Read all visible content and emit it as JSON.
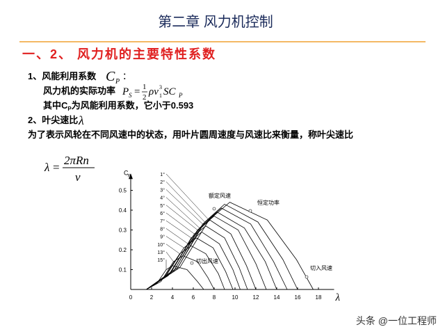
{
  "header": {
    "title": "第二章  风力机控制"
  },
  "heading": "一、2、 风力机的主要特性系数",
  "items": {
    "cp_label": "1、风能利用系数",
    "cp_symbol": "C",
    "cp_symbol_sub": "P",
    "cp_colon": "：",
    "power_label": "风力机的实际功率",
    "power_formula": {
      "lhs": "P",
      "lhs_sub": "S",
      "eq": "=",
      "num": "1",
      "den": "2",
      "rho_v": "ρv",
      "v_sub": "1",
      "v_sup": "3",
      "sc": "SC",
      "sc_sub": "P"
    },
    "cp_note_pre": "其中",
    "cp_note_sym": "C",
    "cp_note_sub": "P",
    "cp_note_post": "为风能利用系数，它小于0.593",
    "tsr_label": "2、叶尖速比",
    "tsr_symbol": "λ",
    "tsr_desc": "为了表示风轮在不同风速中的状态，用叶片圆周速度与风速比来衡量，称叶尖速比",
    "tsr_formula": {
      "lhs": "λ",
      "eq": "=",
      "num": "2πRn",
      "den": "v"
    }
  },
  "chart_data": {
    "type": "line",
    "y_label": "C",
    "y_label_sub": "P",
    "x_label": "λ",
    "xlim": [
      0,
      19.5
    ],
    "ylim": [
      0,
      0.55
    ],
    "xticks": [
      0,
      2,
      4,
      6,
      8,
      10,
      12,
      14,
      16,
      18
    ],
    "yticks": [
      0.1,
      0.2,
      0.3,
      0.4,
      0.5
    ],
    "annotations": [
      "额定风速",
      "恒定功率",
      "切出风速",
      "切入风速"
    ],
    "series": [
      {
        "name": "1°",
        "color": "#000000",
        "x": [
          1.5,
          4.7,
          7.5,
          9.5,
          13.1,
          15.9,
          17.5
        ],
        "values": [
          0,
          0.11,
          0.35,
          0.44,
          0.35,
          0.15,
          0
        ]
      },
      {
        "name": "2°",
        "color": "#000000",
        "x": [
          1.5,
          4.5,
          7.1,
          9,
          12.2,
          14.6,
          16
        ],
        "values": [
          0,
          0.11,
          0.34,
          0.43,
          0.34,
          0.15,
          0
        ]
      },
      {
        "name": "3°",
        "color": "#000000",
        "x": [
          1.5,
          4.4,
          6.9,
          8.7,
          11.5,
          13.7,
          15
        ],
        "values": [
          0,
          0.1,
          0.33,
          0.41,
          0.33,
          0.14,
          0
        ]
      },
      {
        "name": "4°",
        "color": "#000000",
        "x": [
          1.5,
          4.2,
          6.6,
          8.3,
          10.9,
          12.9,
          14
        ],
        "values": [
          0,
          0.1,
          0.31,
          0.39,
          0.31,
          0.14,
          0
        ]
      },
      {
        "name": "5°",
        "color": "#000000",
        "x": [
          1.5,
          4.1,
          6.4,
          8,
          10.3,
          12,
          13
        ],
        "values": [
          0,
          0.09,
          0.3,
          0.37,
          0.3,
          0.13,
          0
        ]
      },
      {
        "name": "6°",
        "color": "#000000",
        "x": [
          1.5,
          3.9,
          6.1,
          7.6,
          9.6,
          11.1,
          12
        ],
        "values": [
          0,
          0.09,
          0.28,
          0.35,
          0.28,
          0.12,
          0
        ]
      },
      {
        "name": "7°",
        "color": "#000000",
        "x": [
          1.5,
          3.8,
          5.8,
          7.2,
          9,
          10.4,
          11.2
        ],
        "values": [
          0,
          0.08,
          0.26,
          0.32,
          0.26,
          0.11,
          0
        ]
      },
      {
        "name": "8°",
        "color": "#000000",
        "x": [
          1.5,
          3.6,
          5.5,
          6.8,
          8.5,
          9.8,
          10.5
        ],
        "values": [
          0,
          0.07,
          0.23,
          0.29,
          0.23,
          0.1,
          0
        ]
      },
      {
        "name": "9°",
        "color": "#000000",
        "x": [
          1.5,
          3.4,
          5.1,
          6.3,
          7.9,
          9.1,
          9.8
        ],
        "values": [
          0,
          0.07,
          0.21,
          0.26,
          0.21,
          0.09,
          0
        ]
      },
      {
        "name": "10°",
        "color": "#000000",
        "x": [
          1.5,
          3.2,
          4.7,
          5.8,
          7.2,
          8.4,
          9
        ],
        "values": [
          0,
          0.06,
          0.18,
          0.22,
          0.18,
          0.08,
          0
        ]
      },
      {
        "name": "13°",
        "color": "#000000",
        "x": [
          1.5,
          2.9,
          4.1,
          5,
          6.4,
          7.4,
          8
        ],
        "values": [
          0,
          0.04,
          0.14,
          0.17,
          0.14,
          0.06,
          0
        ]
      },
      {
        "name": "15°",
        "color": "#000000",
        "x": [
          1.5,
          2.5,
          3.4,
          4,
          5.4,
          6.4,
          7
        ],
        "values": [
          0,
          0.03,
          0.1,
          0.12,
          0.1,
          0.04,
          0
        ]
      }
    ]
  },
  "footer": {
    "watermark": "头条 @一位工程师"
  }
}
